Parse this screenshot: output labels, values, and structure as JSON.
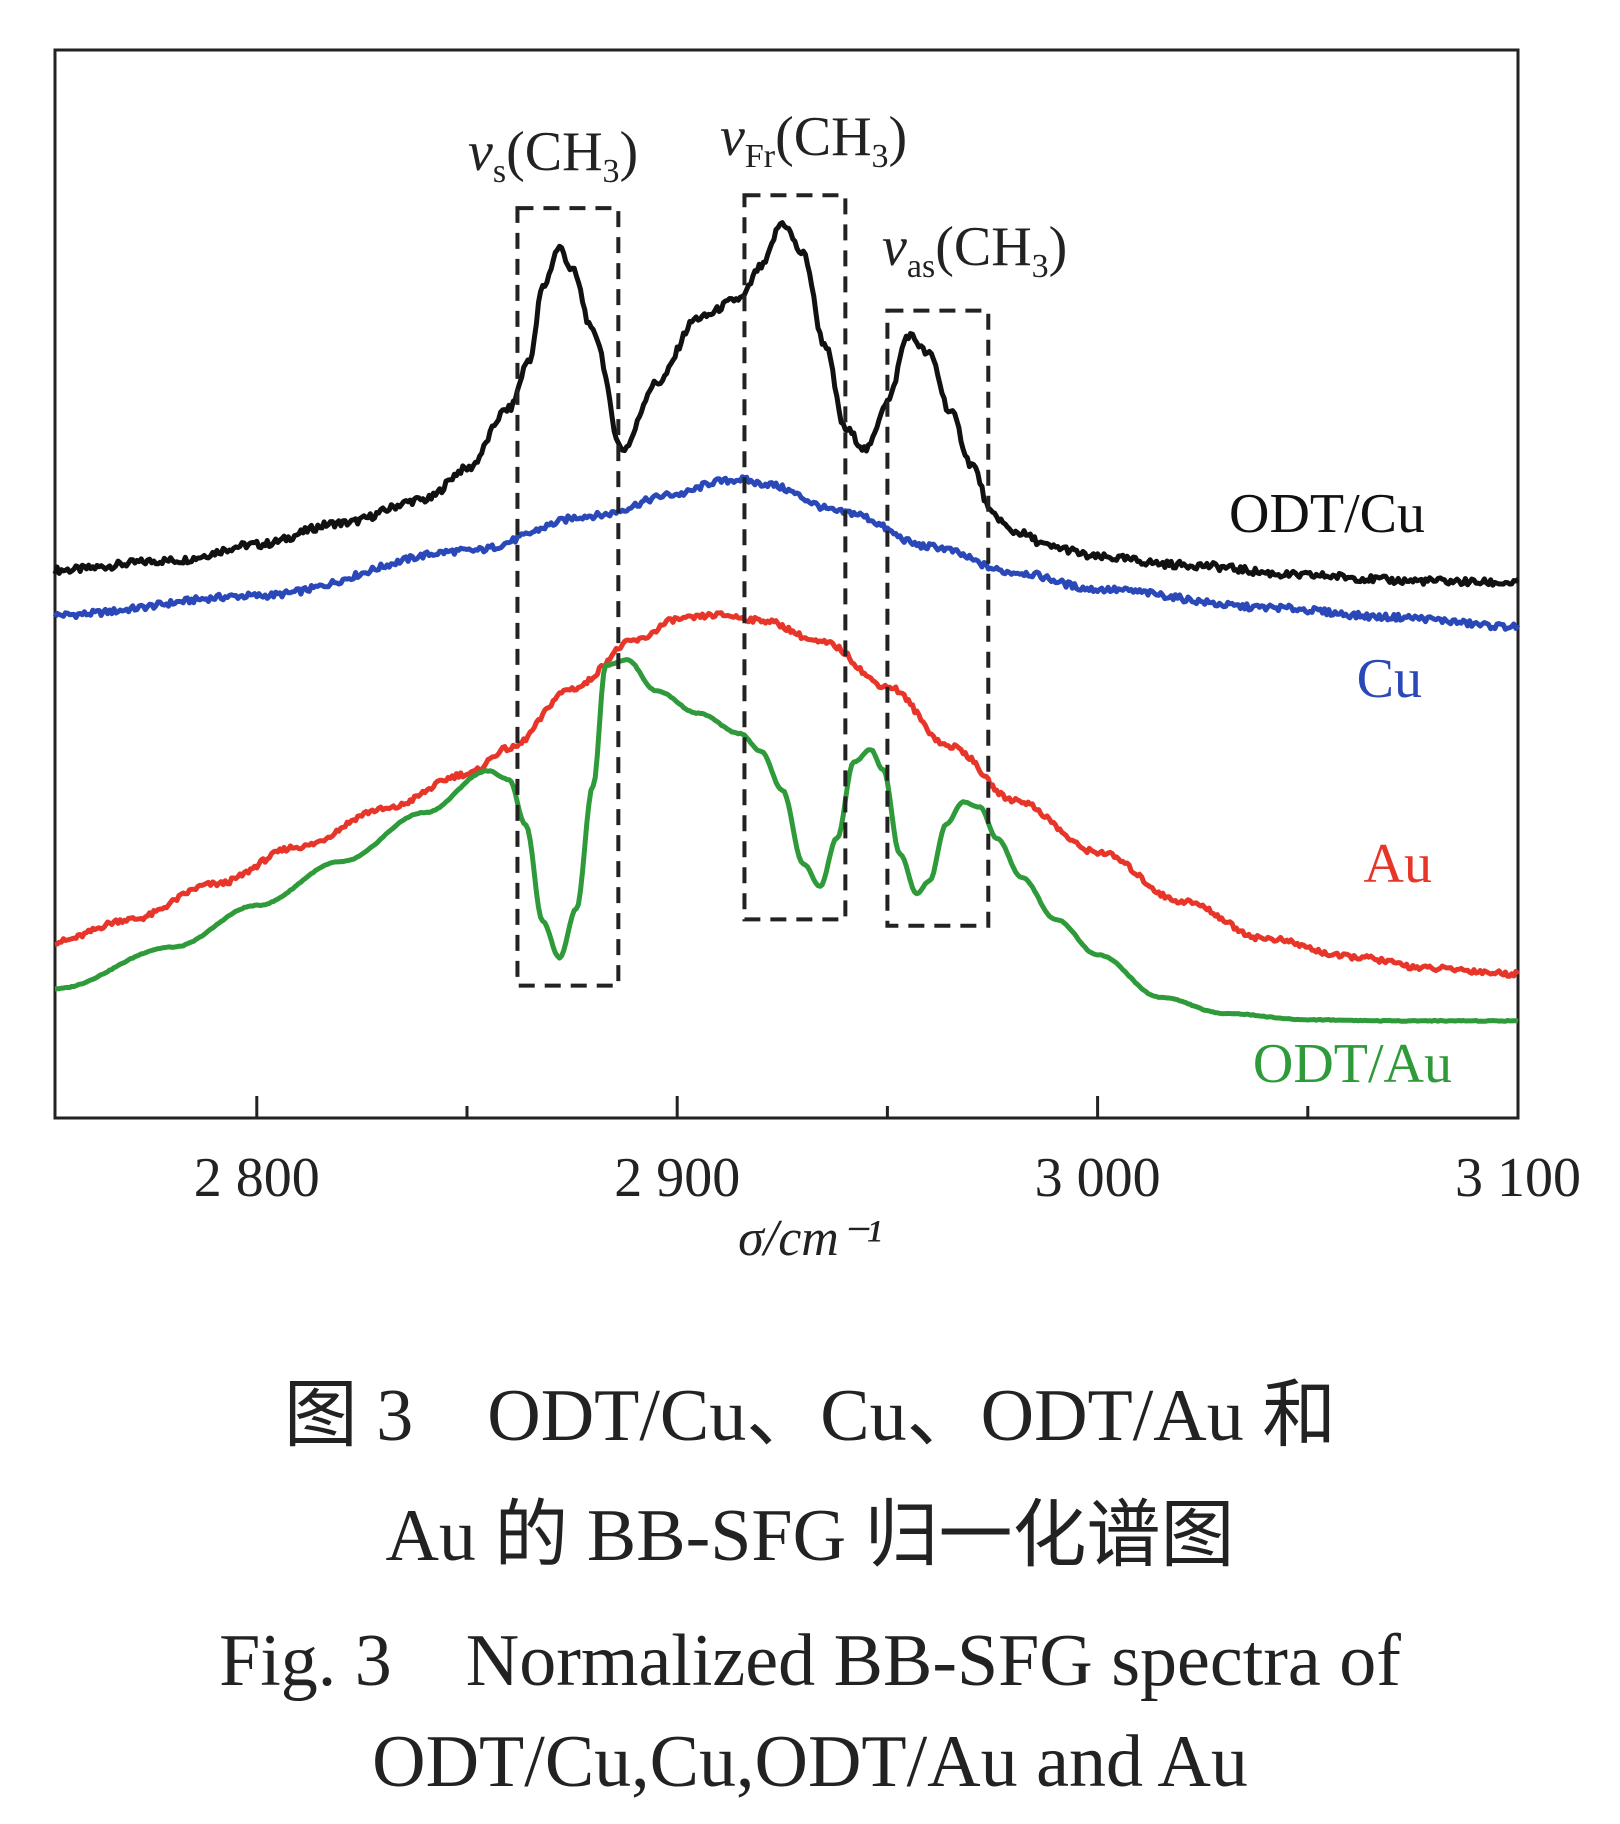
{
  "chart_data": {
    "type": "line",
    "title": "",
    "xlabel": "σ/cm⁻¹",
    "ylabel": "",
    "xlim": [
      2752,
      3100
    ],
    "ylim": [
      0,
      1
    ],
    "x_ticks": [
      2800,
      2900,
      3000,
      3100
    ],
    "x_tick_labels": [
      "2 800",
      "2 900",
      "3 000",
      "3 100"
    ],
    "x_minor_ticks": [
      2850,
      2950,
      3050
    ],
    "grid": false,
    "series": [
      {
        "name": "ODT/Cu",
        "color": "#111111",
        "x": [
          2752,
          2780,
          2800,
          2820,
          2840,
          2850,
          2860,
          2865,
          2868,
          2872,
          2875,
          2880,
          2887,
          2895,
          2905,
          2915,
          2920,
          2925,
          2930,
          2935,
          2940,
          2945,
          2950,
          2955,
          2960,
          2965,
          2970,
          2975,
          2980,
          2990,
          3000,
          3020,
          3050,
          3075,
          3100
        ],
        "values": [
          0.513,
          0.522,
          0.537,
          0.557,
          0.579,
          0.608,
          0.664,
          0.711,
          0.778,
          0.815,
          0.794,
          0.736,
          0.626,
          0.688,
          0.749,
          0.767,
          0.797,
          0.838,
          0.809,
          0.725,
          0.645,
          0.626,
          0.671,
          0.733,
          0.715,
          0.661,
          0.612,
          0.565,
          0.549,
          0.534,
          0.525,
          0.518,
          0.508,
          0.503,
          0.501
        ]
      },
      {
        "name": "Cu",
        "color": "#2b48b8",
        "x": [
          2752,
          2800,
          2850,
          2880,
          2900,
          2910,
          2915,
          2920,
          2940,
          2960,
          2980,
          3000,
          3040,
          3070,
          3100
        ],
        "values": [
          0.471,
          0.489,
          0.531,
          0.564,
          0.584,
          0.596,
          0.598,
          0.594,
          0.567,
          0.535,
          0.511,
          0.495,
          0.478,
          0.469,
          0.46
        ]
      },
      {
        "name": "Au",
        "color": "#e8352a",
        "x": [
          2752,
          2770,
          2790,
          2810,
          2830,
          2850,
          2860,
          2875,
          2890,
          2900,
          2910,
          2920,
          2935,
          2950,
          2965,
          2980,
          3000,
          3020,
          3040,
          3060,
          3080,
          3100
        ],
        "values": [
          0.165,
          0.186,
          0.219,
          0.254,
          0.289,
          0.322,
          0.346,
          0.402,
          0.447,
          0.467,
          0.471,
          0.466,
          0.445,
          0.404,
          0.348,
          0.298,
          0.249,
          0.203,
          0.168,
          0.151,
          0.14,
          0.135
        ]
      },
      {
        "name": "ODT/Au",
        "color": "#2e9a3a",
        "x": [
          2752,
          2780,
          2800,
          2820,
          2840,
          2855,
          2860,
          2864,
          2868,
          2872,
          2876,
          2880,
          2883,
          2888,
          2895,
          2905,
          2915,
          2920,
          2925,
          2930,
          2934,
          2938,
          2942,
          2946,
          2949,
          2953,
          2957,
          2960,
          2964,
          2968,
          2972,
          2976,
          2982,
          2990,
          3000,
          3015,
          3030,
          3050,
          3070,
          3100
        ],
        "values": [
          0.121,
          0.16,
          0.199,
          0.24,
          0.286,
          0.325,
          0.317,
          0.274,
          0.184,
          0.15,
          0.196,
          0.311,
          0.424,
          0.429,
          0.4,
          0.379,
          0.36,
          0.343,
          0.307,
          0.238,
          0.217,
          0.262,
          0.333,
          0.345,
          0.326,
          0.247,
          0.21,
          0.222,
          0.275,
          0.296,
          0.291,
          0.262,
          0.225,
          0.186,
          0.153,
          0.113,
          0.098,
          0.092,
          0.091,
          0.091
        ]
      }
    ],
    "bands": [
      {
        "label_main": "v",
        "label_sub": "s",
        "label_tail": "(CH",
        "label_sub2": "3",
        "label_close": ")",
        "x_range": [
          2862,
          2886
        ],
        "y_range": [
          0.124,
          0.852
        ]
      },
      {
        "label_main": "v",
        "label_sub": "Fr",
        "label_tail": "(CH",
        "label_sub2": "3",
        "label_close": ")",
        "x_range": [
          2916,
          2940
        ],
        "y_range": [
          0.186,
          0.864
        ]
      },
      {
        "label_main": "v",
        "label_sub": "as",
        "label_tail": "(CH",
        "label_sub2": "3",
        "label_close": ")",
        "x_range": [
          2950,
          2974
        ],
        "y_range": [
          0.18,
          0.756
        ]
      }
    ],
    "series_labels": [
      "ODT/Cu",
      "Cu",
      "Au",
      "ODT/Au"
    ]
  },
  "caption": {
    "cn_line1": "图 3　ODT/Cu、Cu、ODT/Au 和",
    "cn_line2": "Au 的 BB-SFG 归一化谱图",
    "en_line1": "Fig. 3　Normalized BB-SFG spectra of",
    "en_line2": "ODT/Cu,Cu,ODT/Au and Au"
  }
}
